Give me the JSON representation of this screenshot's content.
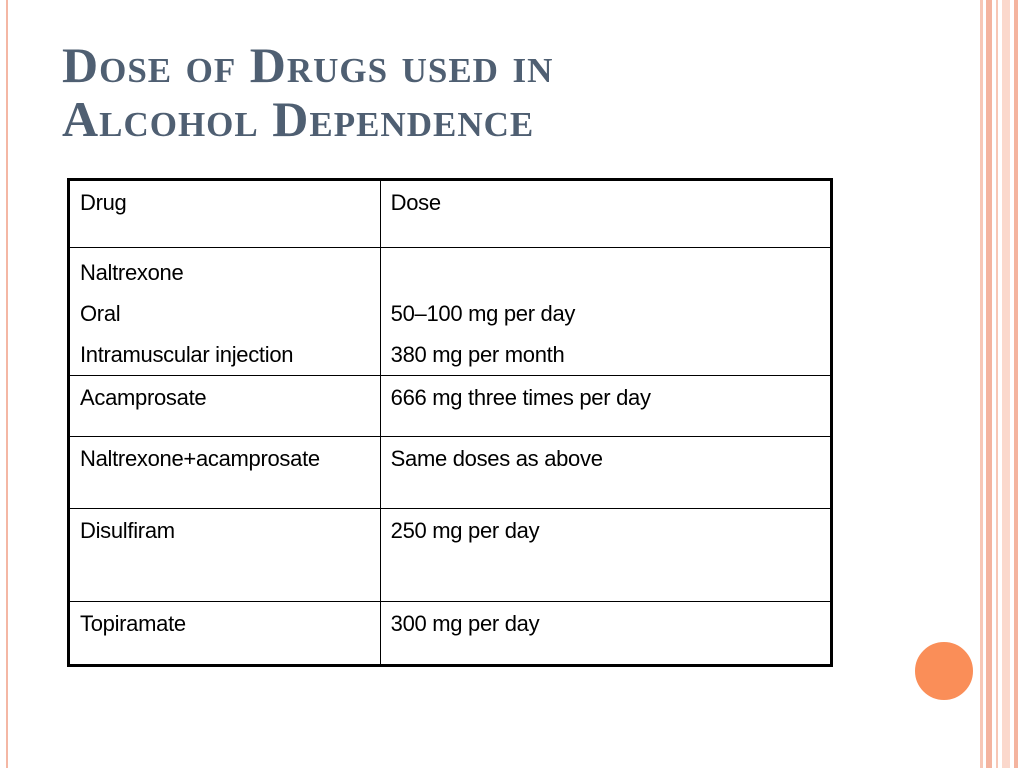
{
  "slide": {
    "title_line1": "Dose of Drugs used in",
    "title_line2": "Alcohol Dependence"
  },
  "table": {
    "headers": [
      "Drug",
      "Dose"
    ],
    "rows": [
      {
        "drug": [
          "Naltrexone",
          "Oral",
          "Intramuscular injection"
        ],
        "dose": [
          "",
          "50–100 mg per day",
          "380 mg per month"
        ]
      },
      {
        "drug": [
          "Acamprosate"
        ],
        "dose": [
          "666 mg three times per day"
        ]
      },
      {
        "drug": [
          "Naltrexone+acamprosate"
        ],
        "dose": [
          "Same doses as above"
        ]
      },
      {
        "drug": [
          "Disulfiram"
        ],
        "dose": [
          "250 mg per day"
        ]
      },
      {
        "drug": [
          "Topiramate"
        ],
        "dose": [
          "300 mg per day"
        ]
      }
    ]
  },
  "colors": {
    "title": "#4f5f72",
    "accent_circle": "#fa8e58",
    "stripes": "#f4b49f"
  }
}
